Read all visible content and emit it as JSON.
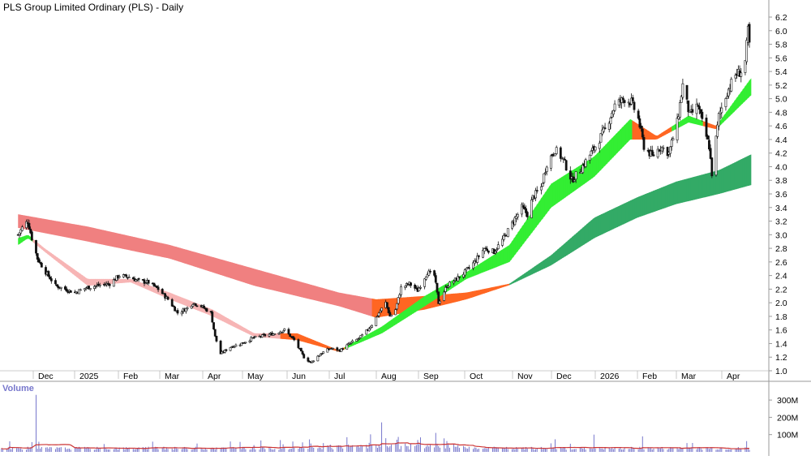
{
  "chart_data": {
    "title": "PLS Group Limited Ordinary (PLS) - Daily",
    "type": "candlestick",
    "price_panel": {
      "ylim": [
        1.0,
        6.3
      ],
      "y_ticks": [
        "6.2",
        "6.0",
        "5.8",
        "5.6",
        "5.4",
        "5.2",
        "5.0",
        "4.8",
        "4.6",
        "4.4",
        "4.2",
        "4.0",
        "3.8",
        "3.6",
        "3.4",
        "3.2",
        "3.0",
        "2.8",
        "2.6",
        "2.4",
        "2.2",
        "2.0",
        "1.8",
        "1.6",
        "1.4",
        "1.2",
        "1.0"
      ],
      "x_labels": [
        "Dec",
        "2025",
        "Feb",
        "Mar",
        "Apr",
        "May",
        "Jun",
        "Jul",
        "Aug",
        "Sep",
        "Oct",
        "Nov",
        "Dec",
        "2026",
        "Feb",
        "Mar",
        "Apr"
      ],
      "price_path": [
        [
          "2024-11-12",
          3.0
        ],
        [
          "2024-11-15",
          3.1
        ],
        [
          "2024-11-19",
          3.2
        ],
        [
          "2024-11-22",
          2.95
        ],
        [
          "2024-11-26",
          2.65
        ],
        [
          "2024-12-02",
          2.45
        ],
        [
          "2024-12-09",
          2.25
        ],
        [
          "2024-12-16",
          2.2
        ],
        [
          "2024-12-23",
          2.15
        ],
        [
          "2024-12-31",
          2.22
        ],
        [
          "2025-01-10",
          2.26
        ],
        [
          "2025-01-17",
          2.28
        ],
        [
          "2025-01-24",
          2.4
        ],
        [
          "2025-01-31",
          2.38
        ],
        [
          "2025-02-07",
          2.32
        ],
        [
          "2025-02-14",
          2.3
        ],
        [
          "2025-02-21",
          2.2
        ],
        [
          "2025-02-28",
          2.05
        ],
        [
          "2025-03-07",
          1.85
        ],
        [
          "2025-03-14",
          1.92
        ],
        [
          "2025-03-18",
          2.0
        ],
        [
          "2025-03-24",
          1.95
        ],
        [
          "2025-03-31",
          1.85
        ],
        [
          "2025-04-03",
          1.5
        ],
        [
          "2025-04-07",
          1.25
        ],
        [
          "2025-04-14",
          1.35
        ],
        [
          "2025-04-22",
          1.4
        ],
        [
          "2025-04-30",
          1.48
        ],
        [
          "2025-05-09",
          1.52
        ],
        [
          "2025-05-16",
          1.55
        ],
        [
          "2025-05-23",
          1.6
        ],
        [
          "2025-05-30",
          1.45
        ],
        [
          "2025-06-06",
          1.2
        ],
        [
          "2025-06-11",
          1.12
        ],
        [
          "2025-06-18",
          1.25
        ],
        [
          "2025-06-25",
          1.33
        ],
        [
          "2025-07-02",
          1.3
        ],
        [
          "2025-07-09",
          1.4
        ],
        [
          "2025-07-16",
          1.48
        ],
        [
          "2025-07-21",
          1.58
        ],
        [
          "2025-07-25",
          1.68
        ],
        [
          "2025-07-30",
          1.85
        ],
        [
          "2025-08-04",
          2.0
        ],
        [
          "2025-08-07",
          1.8
        ],
        [
          "2025-08-11",
          1.9
        ],
        [
          "2025-08-15",
          2.22
        ],
        [
          "2025-08-21",
          2.28
        ],
        [
          "2025-08-27",
          2.18
        ],
        [
          "2025-09-03",
          2.45
        ],
        [
          "2025-09-08",
          2.4
        ],
        [
          "2025-09-11",
          2.0
        ],
        [
          "2025-09-17",
          2.25
        ],
        [
          "2025-09-24",
          2.35
        ],
        [
          "2025-09-30",
          2.45
        ],
        [
          "2025-10-07",
          2.6
        ],
        [
          "2025-10-14",
          2.8
        ],
        [
          "2025-10-21",
          2.75
        ],
        [
          "2025-10-28",
          2.95
        ],
        [
          "2025-11-04",
          3.2
        ],
        [
          "2025-11-10",
          3.4
        ],
        [
          "2025-11-14",
          3.3
        ],
        [
          "2025-11-18",
          3.55
        ],
        [
          "2025-11-24",
          3.7
        ],
        [
          "2025-11-28",
          4.05
        ],
        [
          "2025-12-04",
          4.25
        ],
        [
          "2025-12-10",
          4.1
        ],
        [
          "2025-12-16",
          3.8
        ],
        [
          "2025-12-22",
          3.95
        ],
        [
          "2026-01-02",
          4.3
        ],
        [
          "2026-01-09",
          4.55
        ],
        [
          "2026-01-16",
          4.9
        ],
        [
          "2026-01-23",
          5.0
        ],
        [
          "2026-01-28",
          4.95
        ],
        [
          "2026-02-02",
          4.7
        ],
        [
          "2026-02-06",
          4.3
        ],
        [
          "2026-02-12",
          4.15
        ],
        [
          "2026-02-18",
          4.3
        ],
        [
          "2026-02-24",
          4.2
        ],
        [
          "2026-03-02",
          4.65
        ],
        [
          "2026-03-06",
          5.2
        ],
        [
          "2026-03-11",
          4.75
        ],
        [
          "2026-03-17",
          4.9
        ],
        [
          "2026-03-20",
          4.65
        ],
        [
          "2026-03-25",
          4.3
        ],
        [
          "2026-03-27",
          3.9
        ],
        [
          "2026-04-01",
          4.75
        ],
        [
          "2026-04-07",
          5.1
        ],
        [
          "2026-04-13",
          5.35
        ],
        [
          "2026-04-17",
          5.4
        ],
        [
          "2026-04-20",
          5.55
        ],
        [
          "2026-04-22",
          6.0
        ],
        [
          "2026-04-23",
          5.8
        ]
      ],
      "short_mma_band": {
        "upper": [
          [
            "2024-11-12",
            2.95
          ],
          [
            "2024-11-19",
            3.0
          ],
          [
            "2024-12-01",
            2.8
          ],
          [
            "2025-01-01",
            2.35
          ],
          [
            "2025-02-01",
            2.35
          ],
          [
            "2025-03-01",
            2.15
          ],
          [
            "2025-04-01",
            1.9
          ],
          [
            "2025-05-01",
            1.55
          ],
          [
            "2025-06-01",
            1.55
          ],
          [
            "2025-07-01",
            1.3
          ],
          [
            "2025-08-01",
            1.65
          ],
          [
            "2025-09-01",
            2.1
          ],
          [
            "2025-10-01",
            2.45
          ],
          [
            "2025-11-01",
            2.85
          ],
          [
            "2025-12-01",
            3.75
          ],
          [
            "2026-01-01",
            4.15
          ],
          [
            "2026-01-27",
            4.7
          ],
          [
            "2026-02-15",
            4.45
          ],
          [
            "2026-03-10",
            4.75
          ],
          [
            "2026-03-30",
            4.6
          ],
          [
            "2026-04-24",
            5.3
          ]
        ],
        "lower": [
          [
            "2024-11-12",
            2.85
          ],
          [
            "2024-11-19",
            2.95
          ],
          [
            "2024-12-01",
            2.75
          ],
          [
            "2025-01-01",
            2.25
          ],
          [
            "2025-02-01",
            2.3
          ],
          [
            "2025-03-01",
            2.05
          ],
          [
            "2025-04-01",
            1.8
          ],
          [
            "2025-05-01",
            1.5
          ],
          [
            "2025-06-01",
            1.45
          ],
          [
            "2025-07-01",
            1.28
          ],
          [
            "2025-08-01",
            1.55
          ],
          [
            "2025-09-01",
            1.95
          ],
          [
            "2025-10-01",
            2.35
          ],
          [
            "2025-11-01",
            2.6
          ],
          [
            "2025-12-01",
            3.4
          ],
          [
            "2026-01-01",
            3.85
          ],
          [
            "2026-01-27",
            4.4
          ],
          [
            "2026-02-15",
            4.4
          ],
          [
            "2026-03-10",
            4.65
          ],
          [
            "2026-03-30",
            4.55
          ],
          [
            "2026-04-24",
            5.05
          ]
        ]
      },
      "long_mma_band": {
        "upper": [
          [
            "2024-11-12",
            3.3
          ],
          [
            "2025-01-01",
            3.12
          ],
          [
            "2025-03-01",
            2.85
          ],
          [
            "2025-05-01",
            2.5
          ],
          [
            "2025-07-01",
            2.15
          ],
          [
            "2025-07-28",
            2.05
          ],
          [
            "2025-09-01",
            2.1
          ],
          [
            "2025-10-01",
            2.15
          ],
          [
            "2025-11-01",
            2.28
          ],
          [
            "2025-12-01",
            2.7
          ],
          [
            "2026-01-01",
            3.25
          ],
          [
            "2026-02-01",
            3.55
          ],
          [
            "2026-03-01",
            3.78
          ],
          [
            "2026-04-01",
            3.95
          ],
          [
            "2026-04-24",
            4.18
          ]
        ],
        "lower": [
          [
            "2024-11-12",
            3.1
          ],
          [
            "2025-01-01",
            2.9
          ],
          [
            "2025-03-01",
            2.65
          ],
          [
            "2025-05-01",
            2.25
          ],
          [
            "2025-07-01",
            1.95
          ],
          [
            "2025-07-28",
            1.78
          ],
          [
            "2025-09-01",
            1.9
          ],
          [
            "2025-10-01",
            2.05
          ],
          [
            "2025-11-01",
            2.26
          ],
          [
            "2025-12-01",
            2.55
          ],
          [
            "2026-01-01",
            2.95
          ],
          [
            "2026-02-01",
            3.25
          ],
          [
            "2026-03-01",
            3.45
          ],
          [
            "2026-04-01",
            3.6
          ],
          [
            "2026-04-24",
            3.73
          ]
        ]
      }
    },
    "volume_panel": {
      "label": "Volume",
      "y_ticks": [
        "300M",
        "200M",
        "100M"
      ],
      "ylim": [
        0,
        380
      ],
      "unit_million": true,
      "spikes": [
        [
          "2024-11-25",
          330
        ],
        [
          "2025-08-01",
          120
        ],
        [
          "2025-09-09",
          110
        ],
        [
          "2026-01-01",
          100
        ],
        [
          "2026-02-05",
          90
        ],
        [
          "2025-07-07",
          85
        ]
      ]
    },
    "colors": {
      "up_short": "#33ee33",
      "up_long": "#33aa66",
      "down_short": "#f7b5b5",
      "down_long": "#f08080",
      "transition": "#ff6622",
      "volume_bar": "#7777cc",
      "volume_ma": "#cc3333",
      "candle": "#111111"
    }
  }
}
